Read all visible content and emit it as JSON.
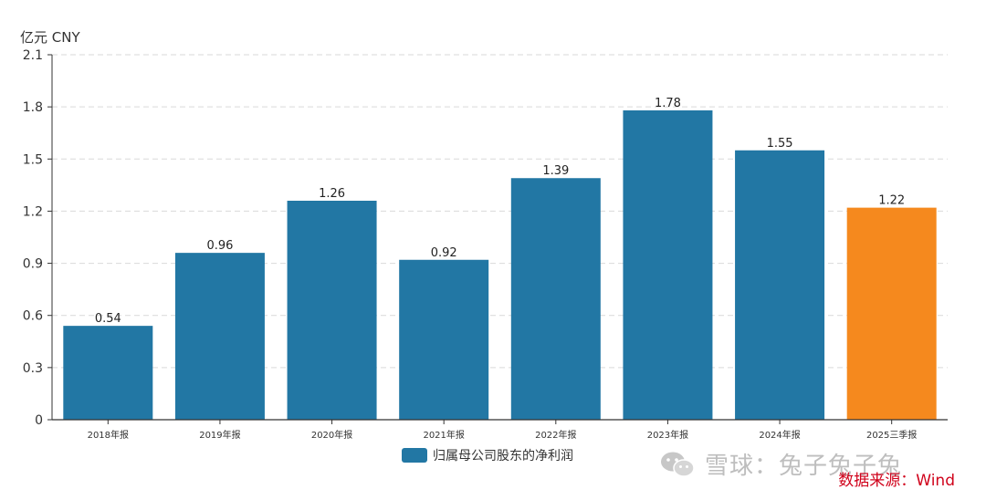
{
  "unit_label": "亿元  CNY",
  "watermark": {
    "text": "雪球：兔子兔子兔",
    "icon": "wechat-icon"
  },
  "source_note": "数据来源：Wind",
  "colors": {
    "main": "#2277A4",
    "highlight": "#F5891E",
    "grid": "#D9D9D9",
    "axis": "#333333"
  },
  "chart_data": {
    "type": "bar",
    "title": "",
    "xlabel": "",
    "ylabel": "亿元  CNY",
    "categories": [
      "2018年报",
      "2019年报",
      "2020年报",
      "2021年报",
      "2022年报",
      "2023年报",
      "2024年报",
      "2025三季报"
    ],
    "series": [
      {
        "name": "归属母公司股东的净利润",
        "values": [
          0.54,
          0.96,
          1.26,
          0.92,
          1.39,
          1.78,
          1.55,
          1.22
        ]
      }
    ],
    "highlight_index": 7,
    "ylim": [
      0,
      2.1
    ],
    "yticks": [
      0,
      0.3,
      0.6,
      0.9,
      1.2,
      1.5,
      1.8,
      2.1
    ],
    "grid": true,
    "legend_position": "bottom-center"
  }
}
